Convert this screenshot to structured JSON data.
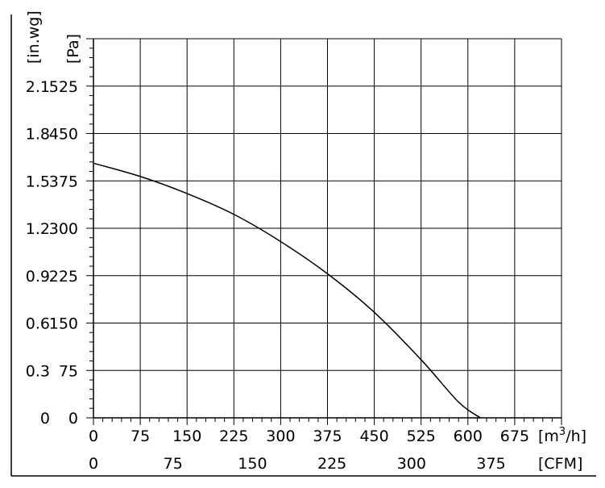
{
  "chart_data": {
    "type": "line",
    "title": "",
    "xlabel": "[m³/h]",
    "xlabel_parts": {
      "base": "[m",
      "sup": "3",
      "tail": "/h]"
    },
    "x2label": "[CFM]",
    "ylabel": "[Pa]",
    "y2label": "[in.wg]",
    "xlim": [
      0,
      750
    ],
    "ylim": [
      0,
      600
    ],
    "x_ticks": [
      0,
      75,
      150,
      225,
      300,
      375,
      450,
      525,
      600,
      675
    ],
    "x2_ticks": [
      0,
      75,
      150,
      225,
      300,
      375
    ],
    "y_ticks": [
      0,
      75,
      150,
      225,
      300,
      375,
      450,
      525
    ],
    "y2_ticks": [
      "0",
      "0.3",
      "0.6",
      "0.9",
      "1.2",
      "1.5",
      "1.8",
      "2.1"
    ],
    "grid": true,
    "series": [
      {
        "x": [
          0,
          75,
          150,
          225,
          300,
          375,
          450,
          525,
          585,
          620
        ],
        "y": [
          403,
          382,
          355,
          322,
          279,
          228,
          167,
          92,
          25,
          0
        ]
      }
    ]
  }
}
